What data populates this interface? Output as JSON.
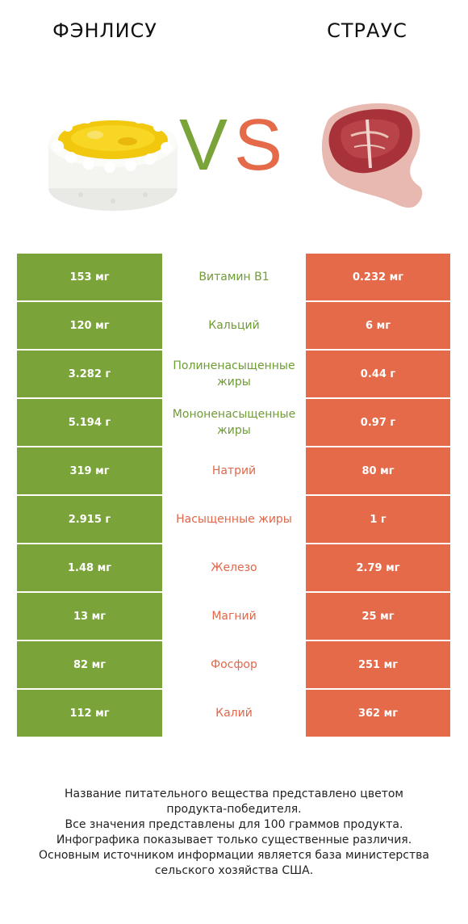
{
  "header": {
    "left_title": "ФЭНЛИСУ",
    "right_title": "СТРАУС",
    "vs_v": "V",
    "vs_s": "S"
  },
  "colors": {
    "left_accent": "#7aa33a",
    "right_accent": "#e46a4a"
  },
  "rows": [
    {
      "left": "153 мг",
      "nutrient": "Витамин B1",
      "right": "0.232 мг",
      "winner": "left"
    },
    {
      "left": "120 мг",
      "nutrient": "Кальций",
      "right": "6 мг",
      "winner": "left"
    },
    {
      "left": "3.282 г",
      "nutrient": "Полиненасыщенные жиры",
      "right": "0.44 г",
      "winner": "left"
    },
    {
      "left": "5.194 г",
      "nutrient": "Мононенасыщенные жиры",
      "right": "0.97 г",
      "winner": "left"
    },
    {
      "left": "319 мг",
      "nutrient": "Натрий",
      "right": "80 мг",
      "winner": "right"
    },
    {
      "left": "2.915 г",
      "nutrient": "Насыщенные жиры",
      "right": "1 г",
      "winner": "right"
    },
    {
      "left": "1.48 мг",
      "nutrient": "Железо",
      "right": "2.79 мг",
      "winner": "right"
    },
    {
      "left": "13 мг",
      "nutrient": "Магний",
      "right": "25 мг",
      "winner": "right"
    },
    {
      "left": "82 мг",
      "nutrient": "Фосфор",
      "right": "251 мг",
      "winner": "right"
    },
    {
      "left": "112 мг",
      "nutrient": "Калий",
      "right": "362 мг",
      "winner": "right"
    }
  ],
  "footer": {
    "line1": "Название питательного вещества представлено цветом",
    "line2": "продукта-победителя.",
    "line3": "Все значения представлены для 100 граммов продукта.",
    "line4": "Инфографика показывает только существенные различия.",
    "line5": "Основным источником информации является база министерства",
    "line6": "сельского хозяйства США."
  }
}
